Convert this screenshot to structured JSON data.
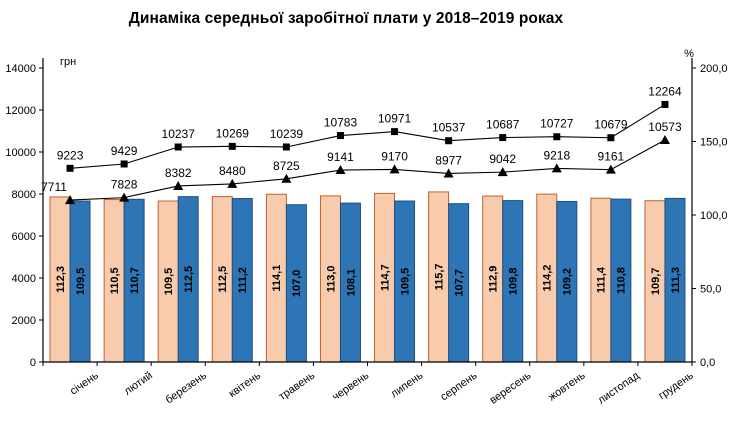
{
  "title": "Динаміка середньої заробітної плати у 2018–2019 роках",
  "chart_data": {
    "type": "bar",
    "subtype": "grouped-bars-with-two-line-overlays-dual-axis",
    "title": "Динаміка середньої заробітної плати у 2018–2019 роках",
    "categories": [
      "січень",
      "лютий",
      "березень",
      "квітень",
      "травень",
      "червень",
      "липень",
      "серпень",
      "вересень",
      "жовтень",
      "листопад",
      "грудень"
    ],
    "bar_series": [
      {
        "id": "peach",
        "fill": "#F8CBAD",
        "border": "#C0612C",
        "label_color": "#833C0B",
        "axis": "right",
        "labels": [
          "112,3",
          "110,5",
          "109,5",
          "112,5",
          "114,1",
          "113,0",
          "114,7",
          "115,7",
          "112,9",
          "114,2",
          "111,4",
          "109,7"
        ],
        "values": [
          112.3,
          110.5,
          109.5,
          112.5,
          114.1,
          113.0,
          114.7,
          115.7,
          112.9,
          114.2,
          111.4,
          109.7
        ]
      },
      {
        "id": "blue",
        "fill": "#2E75B6",
        "border": "#204F82",
        "label_color": "#1F3864",
        "axis": "right",
        "labels": [
          "109,5",
          "110,7",
          "112,5",
          "111,2",
          "107,0",
          "108,1",
          "109,5",
          "107,7",
          "109,8",
          "109,2",
          "110,8",
          "111,3"
        ],
        "values": [
          109.5,
          110.7,
          112.5,
          111.2,
          107.0,
          108.1,
          109.5,
          107.7,
          109.8,
          109.2,
          110.8,
          111.3
        ]
      }
    ],
    "line_series": [
      {
        "id": "upper",
        "marker": "square",
        "color": "#000000",
        "axis": "left",
        "values": [
          9223,
          9429,
          10237,
          10269,
          10239,
          10783,
          10971,
          10537,
          10687,
          10727,
          10679,
          12264
        ]
      },
      {
        "id": "lower",
        "marker": "triangle",
        "color": "#000000",
        "axis": "left",
        "values": [
          7711,
          7828,
          8382,
          8480,
          8725,
          9141,
          9170,
          8977,
          9042,
          9218,
          9161,
          10573
        ]
      }
    ],
    "left_axis": {
      "unit": "грн",
      "min": 0,
      "max": 14000,
      "tick_labels": [
        "0",
        "2000",
        "4000",
        "6000",
        "8000",
        "10000",
        "12000",
        "14000"
      ]
    },
    "right_axis": {
      "unit": "%",
      "min": 0,
      "max": 200,
      "tick_labels": [
        "0,0",
        "50,0",
        "100,0",
        "150,0",
        "200,0"
      ]
    },
    "grid": false,
    "legend": "none"
  }
}
